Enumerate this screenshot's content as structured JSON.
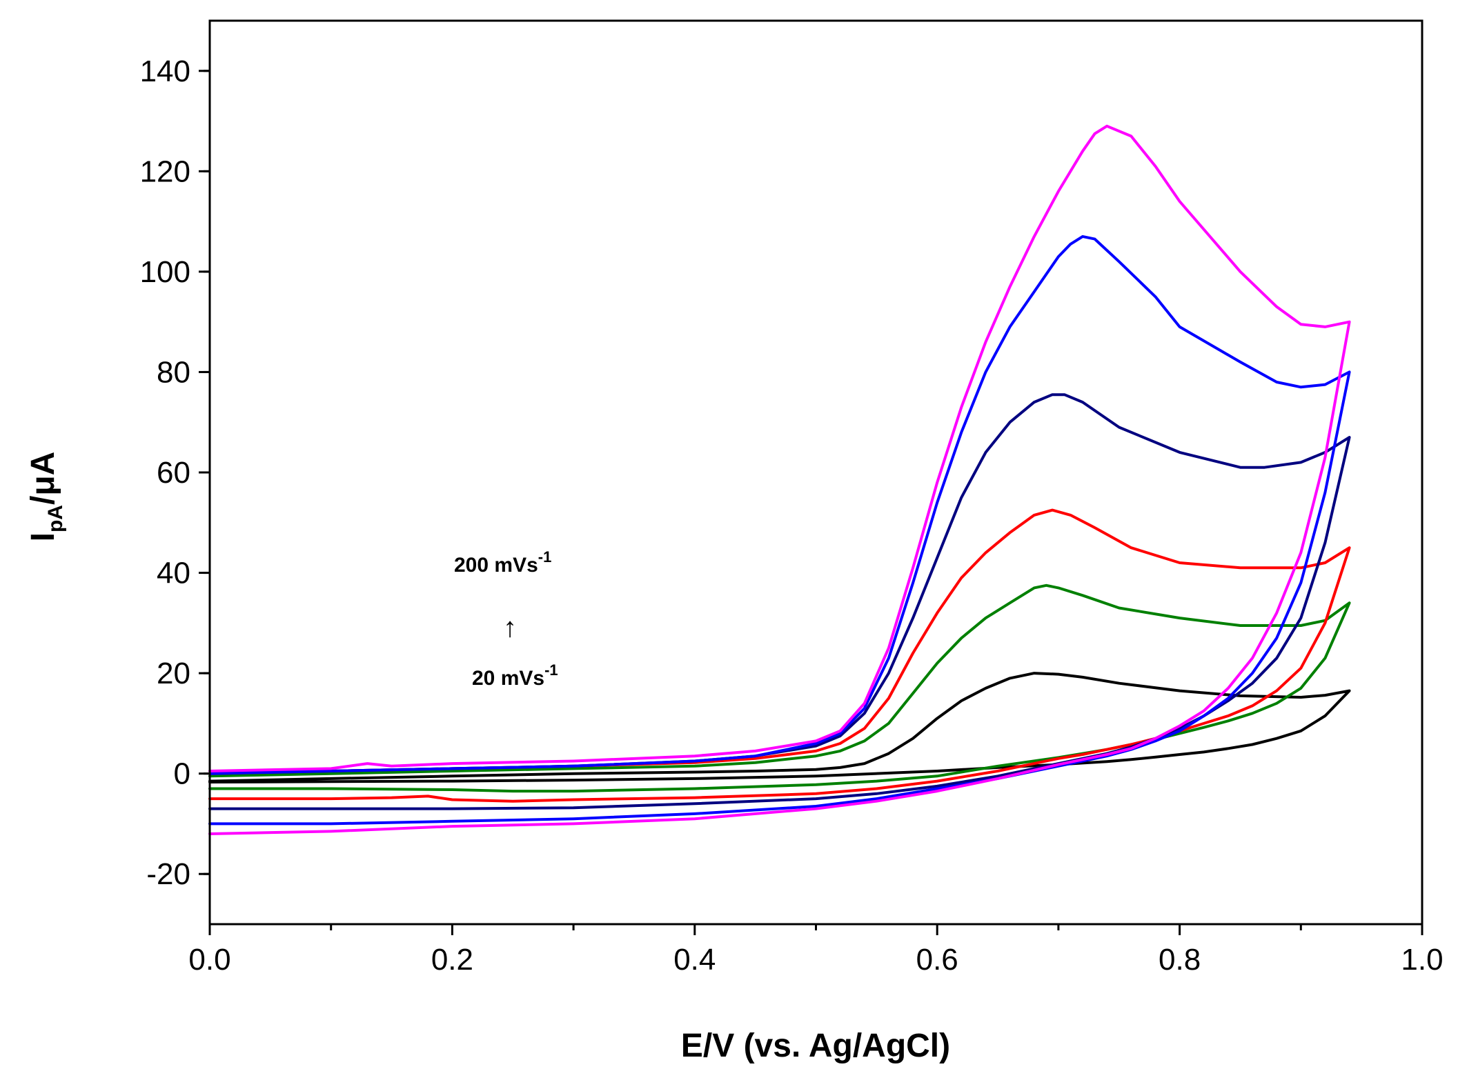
{
  "chart_data": {
    "type": "line",
    "title": "",
    "xlabel": "E/V (vs. Ag/AgCl)",
    "ylabel": {
      "main": "I",
      "sub": "pA",
      "rest": "/μA"
    },
    "xlim": [
      0.0,
      1.0
    ],
    "ylim": [
      -30,
      150
    ],
    "x_ticks": [
      "0.0",
      "0.2",
      "0.4",
      "0.6",
      "0.8",
      "1.0"
    ],
    "y_ticks": [
      "-20",
      "0",
      "20",
      "40",
      "60",
      "80",
      "100",
      "120",
      "140"
    ],
    "x_tick_values": [
      0.0,
      0.2,
      0.4,
      0.6,
      0.8,
      1.0
    ],
    "y_tick_values": [
      -20,
      0,
      20,
      40,
      60,
      80,
      100,
      120,
      140
    ],
    "grid": false,
    "annotations": {
      "top": {
        "text": "200 mVs",
        "sup": "-1"
      },
      "arrow": "↑",
      "bottom": {
        "text": "20 mVs",
        "sup": "-1"
      }
    },
    "series": [
      {
        "color": "#000000",
        "x": [
          0.0,
          0.1,
          0.2,
          0.3,
          0.4,
          0.45,
          0.5,
          0.52,
          0.54,
          0.56,
          0.58,
          0.6,
          0.62,
          0.64,
          0.66,
          0.68,
          0.7,
          0.72,
          0.75,
          0.8,
          0.85,
          0.9,
          0.92,
          0.94,
          0.94,
          0.92,
          0.9,
          0.88,
          0.86,
          0.84,
          0.82,
          0.8,
          0.78,
          0.76,
          0.74,
          0.72,
          0.7,
          0.65,
          0.6,
          0.5,
          0.4,
          0.3,
          0.2,
          0.1,
          0.0
        ],
        "y": [
          -1.5,
          -1,
          -0.5,
          0,
          0.3,
          0.5,
          0.8,
          1.2,
          2,
          4,
          7,
          11,
          14.5,
          17,
          19,
          20,
          19.8,
          19.2,
          18,
          16.5,
          15.5,
          15.2,
          15.6,
          16.5,
          16.5,
          11.5,
          8.5,
          7,
          5.8,
          5,
          4.3,
          3.8,
          3.3,
          2.8,
          2.4,
          2.1,
          1.8,
          1.2,
          0.5,
          -0.5,
          -1,
          -1.3,
          -1.5,
          -1.6,
          -1.7
        ]
      },
      {
        "color": "#008000",
        "x": [
          0.0,
          0.1,
          0.2,
          0.3,
          0.4,
          0.45,
          0.5,
          0.52,
          0.54,
          0.56,
          0.58,
          0.6,
          0.62,
          0.64,
          0.66,
          0.68,
          0.69,
          0.7,
          0.72,
          0.75,
          0.8,
          0.85,
          0.9,
          0.92,
          0.94,
          0.94,
          0.92,
          0.9,
          0.88,
          0.86,
          0.84,
          0.82,
          0.8,
          0.78,
          0.76,
          0.74,
          0.72,
          0.7,
          0.65,
          0.6,
          0.55,
          0.5,
          0.4,
          0.3,
          0.25,
          0.2,
          0.1,
          0.0
        ],
        "y": [
          -0.5,
          0,
          0.5,
          1,
          1.5,
          2.2,
          3.5,
          4.5,
          6.5,
          10,
          16,
          22,
          27,
          31,
          34,
          37,
          37.5,
          37,
          35.5,
          33,
          31,
          29.5,
          29.5,
          30.5,
          34,
          34,
          23,
          17,
          14,
          12,
          10.5,
          9.2,
          8,
          6.8,
          5.8,
          4.8,
          4,
          3.2,
          1.5,
          -0.5,
          -1.5,
          -2.2,
          -3,
          -3.5,
          -3.5,
          -3.2,
          -3,
          -3
        ]
      },
      {
        "color": "#ff0000",
        "x": [
          0.0,
          0.1,
          0.2,
          0.3,
          0.4,
          0.45,
          0.5,
          0.52,
          0.54,
          0.56,
          0.58,
          0.6,
          0.62,
          0.64,
          0.66,
          0.68,
          0.695,
          0.71,
          0.73,
          0.76,
          0.8,
          0.85,
          0.9,
          0.92,
          0.94,
          0.94,
          0.92,
          0.9,
          0.88,
          0.86,
          0.84,
          0.82,
          0.8,
          0.78,
          0.76,
          0.74,
          0.72,
          0.7,
          0.65,
          0.6,
          0.55,
          0.5,
          0.4,
          0.3,
          0.25,
          0.2,
          0.18,
          0.15,
          0.1,
          0.0
        ],
        "y": [
          0,
          0.5,
          1,
          1.5,
          2.2,
          3,
          4.5,
          6,
          9,
          15,
          24,
          32,
          39,
          44,
          48,
          51.5,
          52.5,
          51.5,
          49,
          45,
          42,
          41,
          41,
          42,
          45,
          45,
          30,
          21,
          16.5,
          13.5,
          11.5,
          10,
          8.5,
          7,
          5.8,
          4.8,
          3.8,
          3,
          0.5,
          -1.5,
          -3,
          -4,
          -4.8,
          -5.2,
          -5.5,
          -5.2,
          -4.5,
          -4.8,
          -5,
          -5
        ]
      },
      {
        "color": "#000080",
        "x": [
          0.0,
          0.1,
          0.2,
          0.3,
          0.4,
          0.45,
          0.5,
          0.52,
          0.54,
          0.56,
          0.58,
          0.6,
          0.62,
          0.64,
          0.66,
          0.68,
          0.695,
          0.705,
          0.72,
          0.75,
          0.8,
          0.85,
          0.87,
          0.9,
          0.92,
          0.94,
          0.94,
          0.92,
          0.9,
          0.88,
          0.86,
          0.84,
          0.82,
          0.8,
          0.78,
          0.76,
          0.74,
          0.72,
          0.7,
          0.65,
          0.6,
          0.55,
          0.5,
          0.4,
          0.3,
          0.2,
          0.1,
          0.0
        ],
        "y": [
          0,
          0.5,
          1,
          1.5,
          2.5,
          3.5,
          5.5,
          7.5,
          12,
          20,
          31,
          43,
          55,
          64,
          70,
          74,
          75.5,
          75.5,
          74,
          69,
          64,
          61,
          61,
          62,
          64,
          67,
          67,
          46,
          31,
          23,
          18,
          14.5,
          11.5,
          9,
          7,
          5.3,
          4,
          3,
          2,
          -0.5,
          -2.5,
          -4,
          -5,
          -6,
          -6.8,
          -7,
          -7,
          -7
        ]
      },
      {
        "color": "#0000ff",
        "x": [
          0.0,
          0.1,
          0.2,
          0.3,
          0.4,
          0.45,
          0.5,
          0.52,
          0.54,
          0.56,
          0.58,
          0.6,
          0.62,
          0.64,
          0.66,
          0.68,
          0.7,
          0.71,
          0.72,
          0.73,
          0.75,
          0.78,
          0.8,
          0.85,
          0.88,
          0.9,
          0.92,
          0.94,
          0.94,
          0.92,
          0.9,
          0.88,
          0.86,
          0.84,
          0.82,
          0.8,
          0.78,
          0.76,
          0.74,
          0.72,
          0.7,
          0.65,
          0.6,
          0.55,
          0.5,
          0.4,
          0.3,
          0.2,
          0.1,
          0.0
        ],
        "y": [
          0,
          0.5,
          1,
          1.5,
          2.5,
          3.5,
          6,
          8,
          13,
          23,
          38,
          54,
          68,
          80,
          89,
          96,
          103,
          105.5,
          107,
          106.5,
          102,
          95,
          89,
          82,
          78,
          77,
          77.5,
          80,
          80,
          56,
          38,
          27,
          20,
          15,
          11.5,
          8.5,
          6.5,
          4.8,
          3.5,
          2.5,
          1.5,
          -1,
          -3,
          -5,
          -6.5,
          -8,
          -9,
          -9.5,
          -10,
          -10
        ]
      },
      {
        "color": "#ff00ff",
        "x": [
          0.0,
          0.1,
          0.13,
          0.15,
          0.2,
          0.3,
          0.4,
          0.45,
          0.5,
          0.52,
          0.54,
          0.56,
          0.58,
          0.6,
          0.62,
          0.64,
          0.66,
          0.68,
          0.7,
          0.72,
          0.73,
          0.74,
          0.76,
          0.78,
          0.8,
          0.85,
          0.88,
          0.9,
          0.92,
          0.94,
          0.94,
          0.92,
          0.9,
          0.88,
          0.86,
          0.84,
          0.82,
          0.8,
          0.78,
          0.76,
          0.74,
          0.72,
          0.7,
          0.65,
          0.6,
          0.55,
          0.5,
          0.4,
          0.3,
          0.2,
          0.1,
          0.0
        ],
        "y": [
          0.5,
          1,
          2,
          1.5,
          2,
          2.5,
          3.5,
          4.5,
          6.5,
          8.5,
          14,
          25,
          41,
          58,
          73,
          86,
          97,
          107,
          116,
          124,
          127.5,
          129,
          127,
          121,
          114,
          100,
          93,
          89.5,
          89,
          90,
          90,
          63,
          44,
          32,
          23,
          17,
          12.5,
          9.5,
          7,
          5,
          3.8,
          2.8,
          1.8,
          -1,
          -3.5,
          -5.5,
          -7,
          -9,
          -10,
          -10.5,
          -11.5,
          -12
        ]
      }
    ]
  }
}
